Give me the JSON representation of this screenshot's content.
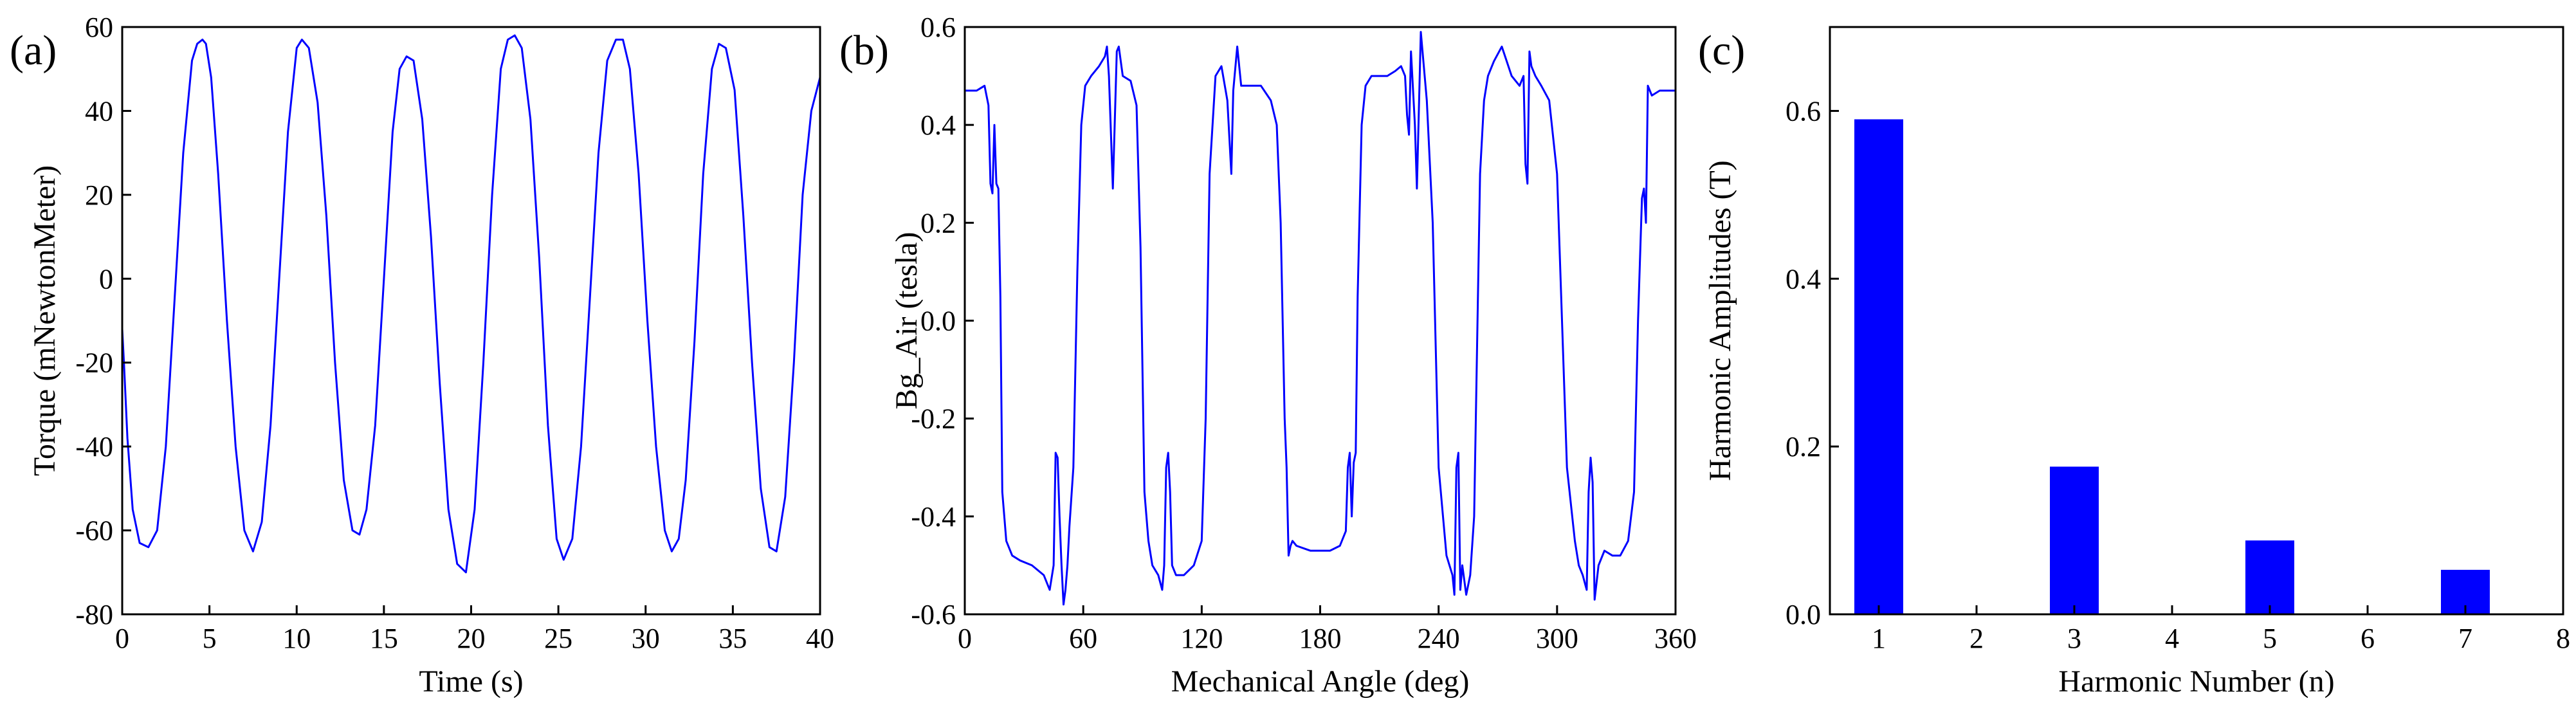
{
  "chart_data": [
    {
      "type": "line",
      "panel_label": "(a)",
      "xlabel": "Time (s)",
      "ylabel": "Torque (mNewtonMeter)",
      "xlim": [
        0,
        40
      ],
      "ylim": [
        -80,
        60
      ],
      "xticks": [
        0,
        5,
        10,
        15,
        20,
        25,
        30,
        35,
        40
      ],
      "yticks": [
        -80,
        -60,
        -40,
        -20,
        0,
        20,
        40,
        60
      ],
      "grid": false,
      "color": "#0000ff",
      "series": [
        {
          "x": [
            0,
            0.1,
            0.3,
            0.6,
            1,
            1.5,
            2,
            2.5,
            3,
            3.5,
            4,
            4.3,
            4.6,
            4.8,
            5.1,
            5.5,
            6,
            6.5,
            7,
            7.5,
            8,
            8.5,
            9,
            9.5,
            10,
            10.3,
            10.7,
            11.2,
            11.7,
            12.2,
            12.7,
            13.2,
            13.6,
            14,
            14.5,
            15,
            15.5,
            15.9,
            16.3,
            16.7,
            17.2,
            17.7,
            18.2,
            18.7,
            19.2,
            19.7,
            20.2,
            20.7,
            21.2,
            21.7,
            22.1,
            22.5,
            22.9,
            23.4,
            23.9,
            24.4,
            24.9,
            25.3,
            25.8,
            26.3,
            26.8,
            27.3,
            27.8,
            28.3,
            28.7,
            29.1,
            29.6,
            30.1,
            30.6,
            31.1,
            31.5,
            31.9,
            32.3,
            32.8,
            33.3,
            33.8,
            34.2,
            34.6,
            35.1,
            35.6,
            36.1,
            36.6,
            37.1,
            37.5,
            38,
            38.5,
            39,
            39.5,
            40
          ],
          "y": [
            -12,
            -20,
            -38,
            -55,
            -63,
            -64,
            -60,
            -40,
            -5,
            30,
            52,
            56,
            57,
            56,
            48,
            25,
            -10,
            -40,
            -60,
            -65,
            -58,
            -35,
            0,
            35,
            55,
            57,
            55,
            42,
            15,
            -20,
            -48,
            -60,
            -61,
            -55,
            -35,
            0,
            35,
            50,
            53,
            52,
            38,
            10,
            -25,
            -55,
            -68,
            -70,
            -55,
            -20,
            20,
            50,
            57,
            58,
            55,
            38,
            5,
            -35,
            -62,
            -67,
            -62,
            -40,
            -5,
            30,
            52,
            57,
            57,
            50,
            25,
            -10,
            -40,
            -60,
            -65,
            -62,
            -48,
            -15,
            25,
            50,
            56,
            55,
            45,
            15,
            -20,
            -50,
            -64,
            -65,
            -52,
            -20,
            20,
            40,
            48
          ]
        }
      ]
    },
    {
      "type": "line",
      "panel_label": "(b)",
      "xlabel": "Mechanical Angle (deg)",
      "ylabel": "Bg_Air (tesla)",
      "xlim": [
        0,
        360
      ],
      "ylim": [
        -0.6,
        0.6
      ],
      "xticks": [
        0,
        60,
        120,
        180,
        240,
        300,
        360
      ],
      "yticks": [
        -0.6,
        -0.4,
        -0.2,
        0.0,
        0.2,
        0.4,
        0.6
      ],
      "ytick_labels": [
        "-0.6",
        "-0.4",
        "-0.2",
        "0.0",
        "0.2",
        "0.4",
        "0.6"
      ],
      "grid": false,
      "color": "#0000ff",
      "series": [
        {
          "x": [
            0,
            6,
            10,
            12,
            13,
            14,
            15,
            16,
            17,
            18,
            19,
            21,
            24,
            28,
            34,
            40,
            43,
            45,
            46,
            47,
            48,
            49,
            50,
            51,
            52,
            53,
            55,
            57,
            59,
            61,
            64,
            68,
            71,
            72,
            73,
            75,
            77,
            78,
            80,
            84,
            87,
            89,
            91,
            93,
            95,
            98,
            100,
            101,
            102,
            103,
            104,
            105,
            107,
            111,
            116,
            120,
            122,
            124,
            127,
            130,
            133,
            135,
            136,
            138,
            140,
            144,
            150,
            155,
            158,
            160,
            162,
            163,
            164,
            165,
            166,
            168,
            175,
            185,
            190,
            193,
            194,
            195,
            196,
            197,
            198,
            199,
            201,
            203,
            206,
            210,
            214,
            218,
            221,
            223,
            224,
            225,
            226,
            228,
            229,
            231,
            234,
            237,
            240,
            244,
            247,
            248,
            249,
            250,
            251,
            252,
            254,
            256,
            258,
            261,
            263,
            265,
            268,
            272,
            277,
            281,
            283,
            284,
            285,
            286,
            287,
            289,
            292,
            296,
            300,
            305,
            309,
            311,
            313,
            315,
            316,
            317,
            318,
            319,
            321,
            324,
            328,
            332,
            336,
            339,
            341,
            343,
            344,
            345,
            346,
            348,
            352,
            356,
            360
          ],
          "y": [
            0.47,
            0.47,
            0.48,
            0.44,
            0.28,
            0.26,
            0.4,
            0.28,
            0.27,
            0.05,
            -0.35,
            -0.45,
            -0.48,
            -0.49,
            -0.5,
            -0.52,
            -0.55,
            -0.5,
            -0.27,
            -0.28,
            -0.4,
            -0.5,
            -0.58,
            -0.55,
            -0.5,
            -0.42,
            -0.3,
            0.1,
            0.4,
            0.48,
            0.5,
            0.52,
            0.54,
            0.56,
            0.5,
            0.27,
            0.55,
            0.56,
            0.5,
            0.49,
            0.44,
            0.15,
            -0.35,
            -0.45,
            -0.5,
            -0.52,
            -0.55,
            -0.5,
            -0.3,
            -0.27,
            -0.35,
            -0.5,
            -0.52,
            -0.52,
            -0.5,
            -0.45,
            -0.2,
            0.3,
            0.5,
            0.52,
            0.45,
            0.3,
            0.47,
            0.56,
            0.48,
            0.48,
            0.48,
            0.45,
            0.4,
            0.2,
            -0.2,
            -0.3,
            -0.48,
            -0.46,
            -0.45,
            -0.46,
            -0.47,
            -0.47,
            -0.46,
            -0.43,
            -0.3,
            -0.27,
            -0.4,
            -0.29,
            -0.27,
            0.05,
            0.4,
            0.48,
            0.5,
            0.5,
            0.5,
            0.51,
            0.52,
            0.5,
            0.42,
            0.38,
            0.55,
            0.4,
            0.27,
            0.59,
            0.45,
            0.2,
            -0.3,
            -0.48,
            -0.52,
            -0.56,
            -0.3,
            -0.27,
            -0.55,
            -0.5,
            -0.56,
            -0.52,
            -0.4,
            0.3,
            0.45,
            0.5,
            0.53,
            0.56,
            0.5,
            0.48,
            0.5,
            0.32,
            0.28,
            0.55,
            0.52,
            0.5,
            0.48,
            0.45,
            0.3,
            -0.3,
            -0.45,
            -0.5,
            -0.52,
            -0.55,
            -0.35,
            -0.28,
            -0.33,
            -0.57,
            -0.5,
            -0.47,
            -0.48,
            -0.48,
            -0.45,
            -0.35,
            0.0,
            0.25,
            0.27,
            0.2,
            0.48,
            0.46,
            0.47,
            0.47,
            0.47
          ]
        }
      ]
    },
    {
      "type": "bar",
      "panel_label": "(c)",
      "xlabel": "Harmonic Number (n)",
      "ylabel": "Harmonic Amplitudes (T)",
      "xlim": [
        0.5,
        8
      ],
      "ylim": [
        0,
        0.7
      ],
      "xticks": [
        1,
        2,
        3,
        4,
        5,
        6,
        7,
        8
      ],
      "yticks": [
        0.0,
        0.2,
        0.4,
        0.6
      ],
      "ytick_labels": [
        "0.0",
        "0.2",
        "0.4",
        "0.6"
      ],
      "grid": false,
      "color": "#0000ff",
      "categories": [
        1,
        3,
        5,
        7
      ],
      "values": [
        0.59,
        0.176,
        0.088,
        0.053
      ],
      "bar_width": 0.5
    }
  ]
}
